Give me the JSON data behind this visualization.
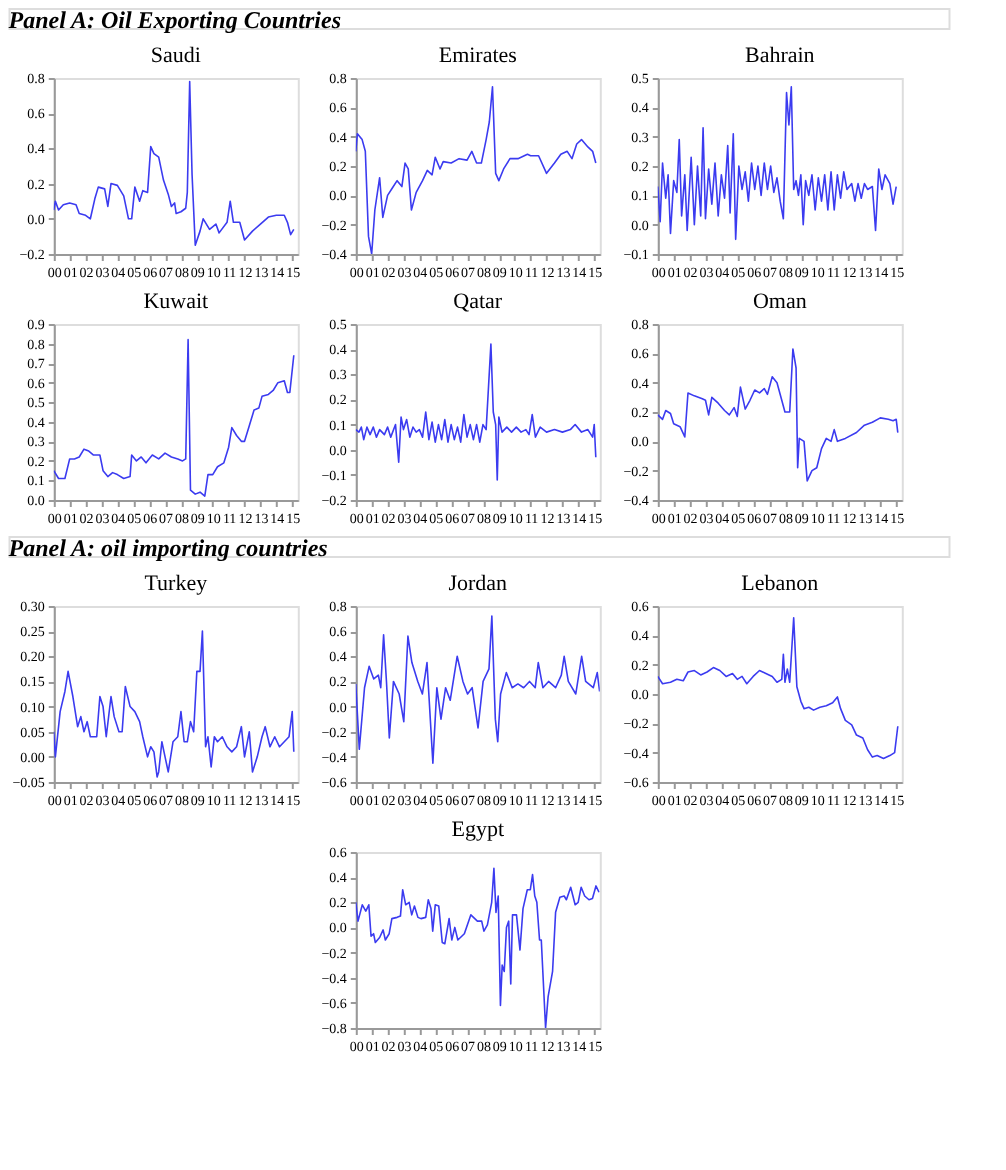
{
  "chart_data": [
    {
      "type": "line",
      "title": "Saudi",
      "annotations": [
        "Panel A: Oil Exporting Countries"
      ],
      "grid": false,
      "xlim": [
        2000,
        2015.35
      ],
      "xticks": [
        {
          "value": 2000,
          "label": "00"
        },
        {
          "value": 2001,
          "label": "01"
        },
        {
          "value": 2002,
          "label": "02"
        },
        {
          "value": 2003,
          "label": "03"
        },
        {
          "value": 2004,
          "label": "04"
        },
        {
          "value": 2005,
          "label": "05"
        },
        {
          "value": 2006,
          "label": "06"
        },
        {
          "value": 2007,
          "label": "07"
        },
        {
          "value": 2008,
          "label": "08"
        },
        {
          "value": 2009,
          "label": "09"
        },
        {
          "value": 2010,
          "label": "10"
        },
        {
          "value": 2011,
          "label": "11"
        },
        {
          "value": 2012,
          "label": "12"
        },
        {
          "value": 2013,
          "label": "13"
        },
        {
          "value": 2014,
          "label": "14"
        },
        {
          "value": 2015,
          "label": "15"
        }
      ],
      "ylim": [
        -0.2,
        0.8
      ],
      "yticks": [
        -0.2,
        {
          "value": 0,
          "label": "0.0"
        },
        0.2,
        0.4,
        0.6,
        0.8
      ],
      "x": [
        2000,
        2000.1,
        2000.3,
        2000.6,
        2001,
        2001.4,
        2001.6,
        2002,
        2002.3,
        2002.6,
        2002.8,
        2003.2,
        2003.4,
        2003.6,
        2004,
        2004.4,
        2004.7,
        2004.9,
        2005.1,
        2005.4,
        2005.6,
        2005.9,
        2006.1,
        2006.3,
        2006.6,
        2006.9,
        2007.2,
        2007.4,
        2007.6,
        2007.7,
        2008,
        2008.3,
        2008.4,
        2008.55,
        2008.7,
        2008.9,
        2009.2,
        2009.4,
        2009.8,
        2010.2,
        2010.4,
        2010.9,
        2011.1,
        2011.3,
        2011.7,
        2012,
        2012.5,
        2013,
        2013.5,
        2014,
        2014.5,
        2014.7,
        2014.9,
        2015.1
      ],
      "series": [
        {
          "color": "#3b3bf0",
          "values": [
            0.05,
            0.1,
            0.05,
            0.08,
            0.09,
            0.08,
            0.03,
            0.02,
            0.0,
            0.12,
            0.18,
            0.17,
            0.07,
            0.2,
            0.19,
            0.13,
            0.0,
            0.0,
            0.18,
            0.1,
            0.16,
            0.15,
            0.41,
            0.37,
            0.35,
            0.22,
            0.14,
            0.07,
            0.09,
            0.03,
            0.04,
            0.06,
            0.15,
            0.78,
            0.25,
            -0.15,
            -0.07,
            0.0,
            -0.06,
            -0.03,
            -0.08,
            -0.02,
            0.1,
            -0.02,
            -0.02,
            -0.12,
            -0.07,
            -0.03,
            0.01,
            0.02,
            0.02,
            -0.02,
            -0.09,
            -0.06
          ]
        }
      ]
    },
    {
      "type": "line",
      "title": "Emirates",
      "grid": false,
      "xlim": [
        2000,
        2015.35
      ],
      "xticks": [
        {
          "value": 2000,
          "label": "00"
        },
        {
          "value": 2001,
          "label": "01"
        },
        {
          "value": 2002,
          "label": "02"
        },
        {
          "value": 2003,
          "label": "03"
        },
        {
          "value": 2004,
          "label": "04"
        },
        {
          "value": 2005,
          "label": "05"
        },
        {
          "value": 2006,
          "label": "06"
        },
        {
          "value": 2007,
          "label": "07"
        },
        {
          "value": 2008,
          "label": "08"
        },
        {
          "value": 2009,
          "label": "09"
        },
        {
          "value": 2010,
          "label": "10"
        },
        {
          "value": 2011,
          "label": "11"
        },
        {
          "value": 2012,
          "label": "12"
        },
        {
          "value": 2013,
          "label": "13"
        },
        {
          "value": 2014,
          "label": "14"
        },
        {
          "value": 2015,
          "label": "15"
        }
      ],
      "ylim": [
        -0.4,
        0.8
      ],
      "yticks": [
        -0.4,
        -0.2,
        {
          "value": 0,
          "label": "0.0"
        },
        0.2,
        0.4,
        0.6,
        0.8
      ],
      "x": [
        2000,
        2000.1,
        2000.4,
        2000.6,
        2000.8,
        2001,
        2001.2,
        2001.5,
        2001.7,
        2002,
        2002.3,
        2002.6,
        2002.9,
        2003.1,
        2003.3,
        2003.5,
        2003.8,
        2004.2,
        2004.5,
        2004.8,
        2005,
        2005.3,
        2005.5,
        2006,
        2006.5,
        2007,
        2007.3,
        2007.6,
        2007.9,
        2008.2,
        2008.4,
        2008.6,
        2008.8,
        2009,
        2009.3,
        2009.7,
        2010.2,
        2010.8,
        2011,
        2011.5,
        2012,
        2012.5,
        2012.9,
        2013.3,
        2013.6,
        2013.9,
        2014.2,
        2014.6,
        2014.9,
        2015.1
      ],
      "series": [
        {
          "color": "#3b3bf0",
          "values": [
            0.3,
            0.42,
            0.38,
            0.3,
            -0.28,
            -0.4,
            -0.1,
            0.12,
            -0.15,
            0.0,
            0.05,
            0.1,
            0.06,
            0.22,
            0.18,
            -0.1,
            0.02,
            0.1,
            0.17,
            0.14,
            0.26,
            0.18,
            0.23,
            0.22,
            0.25,
            0.24,
            0.3,
            0.22,
            0.22,
            0.38,
            0.5,
            0.74,
            0.15,
            0.1,
            0.18,
            0.25,
            0.25,
            0.28,
            0.27,
            0.27,
            0.15,
            0.22,
            0.28,
            0.3,
            0.25,
            0.35,
            0.38,
            0.33,
            0.3,
            0.22
          ]
        }
      ]
    },
    {
      "type": "line",
      "title": "Bahrain",
      "grid": false,
      "xlim": [
        2000,
        2015.35
      ],
      "xticks": [
        {
          "value": 2000,
          "label": "00"
        },
        {
          "value": 2001,
          "label": "01"
        },
        {
          "value": 2002,
          "label": "02"
        },
        {
          "value": 2003,
          "label": "03"
        },
        {
          "value": 2004,
          "label": "04"
        },
        {
          "value": 2005,
          "label": "05"
        },
        {
          "value": 2006,
          "label": "06"
        },
        {
          "value": 2007,
          "label": "07"
        },
        {
          "value": 2008,
          "label": "08"
        },
        {
          "value": 2009,
          "label": "09"
        },
        {
          "value": 2010,
          "label": "10"
        },
        {
          "value": 2011,
          "label": "11"
        },
        {
          "value": 2012,
          "label": "12"
        },
        {
          "value": 2013,
          "label": "13"
        },
        {
          "value": 2014,
          "label": "14"
        },
        {
          "value": 2015,
          "label": "15"
        }
      ],
      "ylim": [
        -0.1,
        0.5
      ],
      "yticks": [
        -0.1,
        {
          "value": 0,
          "label": "0.0"
        },
        0.1,
        0.2,
        0.3,
        0.4,
        0.5
      ],
      "x": [
        2000,
        2000.15,
        2000.3,
        2000.5,
        2000.65,
        2000.8,
        2001,
        2001.2,
        2001.35,
        2001.5,
        2001.7,
        2001.85,
        2002.1,
        2002.3,
        2002.5,
        2002.7,
        2002.85,
        2003,
        2003.2,
        2003.4,
        2003.6,
        2003.8,
        2004,
        2004.2,
        2004.4,
        2004.55,
        2004.75,
        2004.9,
        2005.1,
        2005.3,
        2005.5,
        2005.7,
        2005.9,
        2006.1,
        2006.3,
        2006.5,
        2006.7,
        2006.9,
        2007.1,
        2007.3,
        2007.5,
        2007.7,
        2007.9,
        2008.1,
        2008.25,
        2008.4,
        2008.55,
        2008.7,
        2008.85,
        2009,
        2009.15,
        2009.3,
        2009.5,
        2009.7,
        2009.9,
        2010.1,
        2010.3,
        2010.5,
        2010.7,
        2010.9,
        2011.1,
        2011.3,
        2011.5,
        2011.7,
        2011.9,
        2012.2,
        2012.4,
        2012.6,
        2012.8,
        2013,
        2013.2,
        2013.5,
        2013.7,
        2013.9,
        2014.1,
        2014.3,
        2014.6,
        2014.8,
        2015
      ],
      "series": [
        {
          "color": "#3b3bf0",
          "values": [
            0.13,
            0.01,
            0.21,
            0.09,
            0.17,
            -0.03,
            0.15,
            0.11,
            0.29,
            0.03,
            0.17,
            -0.02,
            0.23,
            0.0,
            0.2,
            0.03,
            0.33,
            0.02,
            0.19,
            0.07,
            0.21,
            0.03,
            0.17,
            0.09,
            0.27,
            0.04,
            0.31,
            -0.05,
            0.2,
            0.12,
            0.18,
            0.08,
            0.21,
            0.12,
            0.2,
            0.1,
            0.21,
            0.12,
            0.2,
            0.11,
            0.16,
            0.08,
            0.02,
            0.45,
            0.34,
            0.47,
            0.12,
            0.15,
            0.1,
            0.17,
            0.0,
            0.15,
            0.1,
            0.17,
            0.05,
            0.16,
            0.08,
            0.17,
            0.05,
            0.18,
            0.05,
            0.17,
            0.09,
            0.18,
            0.12,
            0.14,
            0.08,
            0.14,
            0.09,
            0.14,
            0.12,
            0.13,
            -0.02,
            0.19,
            0.12,
            0.17,
            0.14,
            0.07,
            0.13
          ]
        }
      ]
    },
    {
      "type": "line",
      "title": "Kuwait",
      "grid": false,
      "xlim": [
        2000,
        2015.35
      ],
      "xticks": [
        {
          "value": 2000,
          "label": "00"
        },
        {
          "value": 2001,
          "label": "01"
        },
        {
          "value": 2002,
          "label": "02"
        },
        {
          "value": 2003,
          "label": "03"
        },
        {
          "value": 2004,
          "label": "04"
        },
        {
          "value": 2005,
          "label": "05"
        },
        {
          "value": 2006,
          "label": "06"
        },
        {
          "value": 2007,
          "label": "07"
        },
        {
          "value": 2008,
          "label": "08"
        },
        {
          "value": 2009,
          "label": "09"
        },
        {
          "value": 2010,
          "label": "10"
        },
        {
          "value": 2011,
          "label": "11"
        },
        {
          "value": 2012,
          "label": "12"
        },
        {
          "value": 2013,
          "label": "13"
        },
        {
          "value": 2014,
          "label": "14"
        },
        {
          "value": 2015,
          "label": "15"
        }
      ],
      "ylim": [
        0,
        0.9
      ],
      "yticks": [
        {
          "value": 0,
          "label": "0.0"
        },
        0.1,
        0.2,
        0.3,
        0.4,
        0.5,
        0.6,
        0.7,
        0.8,
        0.9
      ],
      "x": [
        2000,
        2000.3,
        2000.7,
        2001,
        2001.3,
        2001.6,
        2001.9,
        2002.2,
        2002.5,
        2002.9,
        2003.1,
        2003.4,
        2003.7,
        2004,
        2004.4,
        2004.8,
        2004.9,
        2005.2,
        2005.5,
        2005.8,
        2006.2,
        2006.6,
        2007,
        2007.4,
        2007.8,
        2008.1,
        2008.3,
        2008.45,
        2008.6,
        2008.9,
        2009.2,
        2009.5,
        2009.7,
        2010,
        2010.3,
        2010.7,
        2011,
        2011.2,
        2011.5,
        2011.8,
        2012,
        2012.3,
        2012.6,
        2012.9,
        2013.1,
        2013.5,
        2013.8,
        2014.1,
        2014.5,
        2014.7,
        2014.85,
        2015.1
      ],
      "series": [
        {
          "color": "#3b3bf0",
          "values": [
            0.15,
            0.11,
            0.11,
            0.21,
            0.21,
            0.22,
            0.26,
            0.25,
            0.23,
            0.23,
            0.15,
            0.12,
            0.14,
            0.13,
            0.11,
            0.12,
            0.23,
            0.2,
            0.22,
            0.19,
            0.23,
            0.21,
            0.24,
            0.22,
            0.21,
            0.2,
            0.21,
            0.82,
            0.05,
            0.03,
            0.04,
            0.02,
            0.13,
            0.13,
            0.17,
            0.19,
            0.27,
            0.37,
            0.33,
            0.3,
            0.3,
            0.38,
            0.46,
            0.47,
            0.53,
            0.54,
            0.56,
            0.6,
            0.61,
            0.55,
            0.55,
            0.74
          ]
        }
      ]
    },
    {
      "type": "line",
      "title": "Qatar",
      "grid": false,
      "xlim": [
        2000,
        2015.35
      ],
      "xticks": [
        {
          "value": 2000,
          "label": "00"
        },
        {
          "value": 2001,
          "label": "01"
        },
        {
          "value": 2002,
          "label": "02"
        },
        {
          "value": 2003,
          "label": "03"
        },
        {
          "value": 2004,
          "label": "04"
        },
        {
          "value": 2005,
          "label": "05"
        },
        {
          "value": 2006,
          "label": "06"
        },
        {
          "value": 2007,
          "label": "07"
        },
        {
          "value": 2008,
          "label": "08"
        },
        {
          "value": 2009,
          "label": "09"
        },
        {
          "value": 2010,
          "label": "10"
        },
        {
          "value": 2011,
          "label": "11"
        },
        {
          "value": 2012,
          "label": "12"
        },
        {
          "value": 2013,
          "label": "13"
        },
        {
          "value": 2014,
          "label": "14"
        },
        {
          "value": 2015,
          "label": "15"
        }
      ],
      "ylim": [
        -0.2,
        0.5
      ],
      "yticks": [
        -0.2,
        -0.1,
        {
          "value": 0,
          "label": "0.0"
        },
        0.1,
        0.2,
        0.3,
        0.4,
        0.5
      ],
      "x": [
        2000,
        2000.2,
        2000.35,
        2000.5,
        2000.7,
        2000.9,
        2001.1,
        2001.3,
        2001.5,
        2001.8,
        2002,
        2002.2,
        2002.5,
        2002.7,
        2002.85,
        2003,
        2003.2,
        2003.4,
        2003.6,
        2003.8,
        2004,
        2004.2,
        2004.4,
        2004.6,
        2004.8,
        2005,
        2005.2,
        2005.4,
        2005.6,
        2005.8,
        2006,
        2006.2,
        2006.4,
        2006.6,
        2006.8,
        2007,
        2007.2,
        2007.4,
        2007.6,
        2007.8,
        2008,
        2008.2,
        2008.35,
        2008.5,
        2008.65,
        2008.8,
        2008.9,
        2009,
        2009.2,
        2009.5,
        2009.8,
        2010.1,
        2010.4,
        2010.7,
        2010.9,
        2011.1,
        2011.3,
        2011.6,
        2012,
        2012.5,
        2013,
        2013.5,
        2013.8,
        2014.2,
        2014.6,
        2014.9,
        2015,
        2015.1
      ],
      "series": [
        {
          "color": "#3b3bf0",
          "values": [
            0.08,
            0.07,
            0.09,
            0.04,
            0.09,
            0.06,
            0.09,
            0.05,
            0.08,
            0.06,
            0.09,
            0.05,
            0.1,
            -0.05,
            0.13,
            0.08,
            0.12,
            0.05,
            0.09,
            0.07,
            0.08,
            0.05,
            0.15,
            0.04,
            0.11,
            0.03,
            0.1,
            0.04,
            0.12,
            0.03,
            0.1,
            0.04,
            0.09,
            0.03,
            0.14,
            0.05,
            0.1,
            0.04,
            0.1,
            0.03,
            0.1,
            0.08,
            0.25,
            0.42,
            0.15,
            0.1,
            -0.12,
            0.13,
            0.07,
            0.09,
            0.07,
            0.09,
            0.07,
            0.08,
            0.06,
            0.14,
            0.05,
            0.09,
            0.07,
            0.08,
            0.07,
            0.08,
            0.1,
            0.07,
            0.08,
            0.05,
            0.1,
            -0.03
          ]
        }
      ]
    },
    {
      "type": "line",
      "title": "Oman",
      "grid": false,
      "xlim": [
        2000,
        2015.35
      ],
      "xticks": [
        {
          "value": 2000,
          "label": "00"
        },
        {
          "value": 2001,
          "label": "01"
        },
        {
          "value": 2002,
          "label": "02"
        },
        {
          "value": 2003,
          "label": "03"
        },
        {
          "value": 2004,
          "label": "04"
        },
        {
          "value": 2005,
          "label": "05"
        },
        {
          "value": 2006,
          "label": "06"
        },
        {
          "value": 2007,
          "label": "07"
        },
        {
          "value": 2008,
          "label": "08"
        },
        {
          "value": 2009,
          "label": "09"
        },
        {
          "value": 2010,
          "label": "10"
        },
        {
          "value": 2011,
          "label": "11"
        },
        {
          "value": 2012,
          "label": "12"
        },
        {
          "value": 2013,
          "label": "13"
        },
        {
          "value": 2014,
          "label": "14"
        },
        {
          "value": 2015,
          "label": "15"
        }
      ],
      "ylim": [
        -0.4,
        0.8
      ],
      "yticks": [
        -0.4,
        -0.2,
        {
          "value": 0,
          "label": "0.0"
        },
        0.2,
        0.4,
        0.6,
        0.8
      ],
      "x": [
        2000,
        2000.3,
        2000.5,
        2000.8,
        2001,
        2001.4,
        2001.7,
        2001.9,
        2002.3,
        2002.8,
        2003,
        2003.2,
        2003.4,
        2003.8,
        2004.2,
        2004.5,
        2004.8,
        2005,
        2005.2,
        2005.5,
        2005.8,
        2006.1,
        2006.4,
        2006.7,
        2006.9,
        2007.2,
        2007.5,
        2007.8,
        2008,
        2008.3,
        2008.5,
        2008.7,
        2008.8,
        2008.9,
        2009.2,
        2009.4,
        2009.7,
        2010,
        2010.3,
        2010.6,
        2010.9,
        2011.1,
        2011.3,
        2011.8,
        2012.5,
        2013,
        2013.5,
        2014,
        2014.5,
        2014.8,
        2015,
        2015.1
      ],
      "series": [
        {
          "color": "#3b3bf0",
          "values": [
            0.18,
            0.15,
            0.21,
            0.19,
            0.12,
            0.1,
            0.03,
            0.33,
            0.31,
            0.29,
            0.28,
            0.18,
            0.3,
            0.26,
            0.21,
            0.18,
            0.23,
            0.17,
            0.37,
            0.22,
            0.28,
            0.35,
            0.33,
            0.36,
            0.32,
            0.44,
            0.4,
            0.28,
            0.2,
            0.2,
            0.63,
            0.5,
            -0.18,
            0.02,
            0.0,
            -0.27,
            -0.2,
            -0.18,
            -0.05,
            0.02,
            0.0,
            0.08,
            0.0,
            0.02,
            0.06,
            0.11,
            0.13,
            0.16,
            0.15,
            0.14,
            0.15,
            0.06
          ]
        }
      ]
    },
    {
      "type": "line",
      "title": "Turkey",
      "annotations": [
        "Panel A: oil importing countries"
      ],
      "grid": false,
      "xlim": [
        2000,
        2015.35
      ],
      "xticks": [
        {
          "value": 2000,
          "label": "00"
        },
        {
          "value": 2001,
          "label": "01"
        },
        {
          "value": 2002,
          "label": "02"
        },
        {
          "value": 2003,
          "label": "03"
        },
        {
          "value": 2004,
          "label": "04"
        },
        {
          "value": 2005,
          "label": "05"
        },
        {
          "value": 2006,
          "label": "06"
        },
        {
          "value": 2007,
          "label": "07"
        },
        {
          "value": 2008,
          "label": "08"
        },
        {
          "value": 2009,
          "label": "09"
        },
        {
          "value": 2010,
          "label": "10"
        },
        {
          "value": 2011,
          "label": "11"
        },
        {
          "value": 2012,
          "label": "12"
        },
        {
          "value": 2013,
          "label": "13"
        },
        {
          "value": 2014,
          "label": "14"
        },
        {
          "value": 2015,
          "label": "15"
        }
      ],
      "ylim": [
        -0.05,
        0.3
      ],
      "yticks": [
        -0.05,
        {
          "value": 0,
          "label": "0.00"
        },
        0.05,
        {
          "value": 0.1,
          "label": "0.10"
        },
        0.15,
        {
          "value": 0.2,
          "label": "0.20"
        },
        0.25,
        {
          "value": 0.3,
          "label": "0.30"
        }
      ],
      "x": [
        2000,
        2000.1,
        2000.4,
        2000.7,
        2000.9,
        2001.2,
        2001.5,
        2001.7,
        2001.9,
        2002.1,
        2002.3,
        2002.7,
        2002.9,
        2003.1,
        2003.3,
        2003.6,
        2003.8,
        2004.1,
        2004.3,
        2004.5,
        2004.8,
        2005.1,
        2005.4,
        2005.6,
        2005.9,
        2006.1,
        2006.3,
        2006.5,
        2006.6,
        2006.8,
        2007,
        2007.2,
        2007.5,
        2007.8,
        2008,
        2008.2,
        2008.4,
        2008.6,
        2008.8,
        2009,
        2009.2,
        2009.35,
        2009.55,
        2009.7,
        2009.9,
        2010.1,
        2010.3,
        2010.6,
        2010.9,
        2011.2,
        2011.5,
        2011.8,
        2012,
        2012.3,
        2012.5,
        2012.8,
        2013.1,
        2013.3,
        2013.6,
        2013.9,
        2014.2,
        2014.5,
        2014.8,
        2015,
        2015.1
      ],
      "series": [
        {
          "color": "#3b3bf0",
          "values": [
            0.05,
            0.0,
            0.09,
            0.13,
            0.17,
            0.12,
            0.06,
            0.08,
            0.05,
            0.07,
            0.04,
            0.04,
            0.12,
            0.1,
            0.04,
            0.12,
            0.08,
            0.05,
            0.05,
            0.14,
            0.1,
            0.09,
            0.07,
            0.04,
            0.0,
            0.02,
            0.01,
            -0.04,
            -0.03,
            0.03,
            0.0,
            -0.03,
            0.03,
            0.04,
            0.09,
            0.03,
            0.03,
            0.07,
            0.05,
            0.17,
            0.17,
            0.25,
            0.02,
            0.04,
            -0.02,
            0.04,
            0.03,
            0.04,
            0.02,
            0.01,
            0.02,
            0.06,
            0.0,
            0.05,
            -0.03,
            0.0,
            0.04,
            0.06,
            0.02,
            0.04,
            0.02,
            0.03,
            0.04,
            0.09,
            0.01
          ]
        }
      ]
    },
    {
      "type": "line",
      "title": "Jordan",
      "grid": false,
      "xlim": [
        2000,
        2015.35
      ],
      "xticks": [
        {
          "value": 2000,
          "label": "00"
        },
        {
          "value": 2001,
          "label": "01"
        },
        {
          "value": 2002,
          "label": "02"
        },
        {
          "value": 2003,
          "label": "03"
        },
        {
          "value": 2004,
          "label": "04"
        },
        {
          "value": 2005,
          "label": "05"
        },
        {
          "value": 2006,
          "label": "06"
        },
        {
          "value": 2007,
          "label": "07"
        },
        {
          "value": 2008,
          "label": "08"
        },
        {
          "value": 2009,
          "label": "09"
        },
        {
          "value": 2010,
          "label": "10"
        },
        {
          "value": 2011,
          "label": "11"
        },
        {
          "value": 2012,
          "label": "12"
        },
        {
          "value": 2013,
          "label": "13"
        },
        {
          "value": 2014,
          "label": "14"
        },
        {
          "value": 2015,
          "label": "15"
        }
      ],
      "ylim": [
        -0.6,
        0.8
      ],
      "yticks": [
        -0.6,
        -0.4,
        -0.2,
        {
          "value": 0,
          "label": "0.0"
        },
        0.2,
        0.4,
        0.6,
        0.8
      ],
      "x": [
        2000,
        2000.22,
        2000.55,
        2000.84,
        2001.13,
        2001.42,
        2001.57,
        2001.75,
        2001.93,
        2002.11,
        2002.37,
        2002.73,
        2003.02,
        2003.28,
        2003.53,
        2003.9,
        2004.19,
        2004.48,
        2004.85,
        2005.1,
        2005.36,
        2005.65,
        2005.94,
        2006.38,
        2006.74,
        2007.03,
        2007.32,
        2007.69,
        2008.01,
        2008.38,
        2008.56,
        2008.78,
        2008.93,
        2009.11,
        2009.47,
        2009.84,
        2010.2,
        2010.56,
        2010.93,
        2011.29,
        2011.48,
        2011.77,
        2012.13,
        2012.57,
        2012.93,
        2013.11,
        2013.37,
        2013.84,
        2014.21,
        2014.46,
        2014.94,
        2015.19,
        2015.34
      ],
      "series": [
        {
          "color": "#3b3bf0",
          "values": [
            0.18,
            -0.34,
            0.15,
            0.32,
            0.22,
            0.25,
            0.15,
            0.57,
            0.2,
            -0.25,
            0.2,
            0.1,
            -0.12,
            0.56,
            0.35,
            0.2,
            0.1,
            0.35,
            -0.45,
            0.15,
            -0.1,
            0.15,
            0.05,
            0.4,
            0.2,
            0.1,
            0.15,
            -0.17,
            0.2,
            0.3,
            0.72,
            -0.1,
            -0.28,
            0.1,
            0.27,
            0.15,
            0.18,
            0.15,
            0.2,
            0.15,
            0.35,
            0.15,
            0.2,
            0.15,
            0.25,
            0.4,
            0.2,
            0.1,
            0.4,
            0.2,
            0.15,
            0.27,
            0.12
          ]
        }
      ]
    },
    {
      "type": "line",
      "title": "Lebanon",
      "grid": false,
      "xlim": [
        2000,
        2015.35
      ],
      "xticks": [
        {
          "value": 2000,
          "label": "00"
        },
        {
          "value": 2001,
          "label": "01"
        },
        {
          "value": 2002,
          "label": "02"
        },
        {
          "value": 2003,
          "label": "03"
        },
        {
          "value": 2004,
          "label": "04"
        },
        {
          "value": 2005,
          "label": "05"
        },
        {
          "value": 2006,
          "label": "06"
        },
        {
          "value": 2007,
          "label": "07"
        },
        {
          "value": 2008,
          "label": "08"
        },
        {
          "value": 2009,
          "label": "09"
        },
        {
          "value": 2010,
          "label": "10"
        },
        {
          "value": 2011,
          "label": "11"
        },
        {
          "value": 2012,
          "label": "12"
        },
        {
          "value": 2013,
          "label": "13"
        },
        {
          "value": 2014,
          "label": "14"
        },
        {
          "value": 2015,
          "label": "15"
        }
      ],
      "ylim": [
        -0.6,
        0.6
      ],
      "yticks": [
        -0.6,
        -0.4,
        -0.2,
        {
          "value": 0,
          "label": "0.0"
        },
        0.2,
        0.4,
        0.6
      ],
      "x": [
        2000,
        2000.3,
        2000.8,
        2001.2,
        2001.6,
        2001.9,
        2002.3,
        2002.7,
        2003.1,
        2003.5,
        2003.9,
        2004.3,
        2004.7,
        2005,
        2005.3,
        2005.6,
        2006,
        2006.4,
        2006.8,
        2007.2,
        2007.5,
        2007.8,
        2007.9,
        2008,
        2008.15,
        2008.3,
        2008.55,
        2008.75,
        2009,
        2009.2,
        2009.5,
        2009.8,
        2010.2,
        2010.6,
        2011,
        2011.3,
        2011.5,
        2011.8,
        2012.2,
        2012.5,
        2012.9,
        2013.2,
        2013.5,
        2013.8,
        2014.2,
        2014.6,
        2014.9,
        2015.1
      ],
      "series": [
        {
          "color": "#3b3bf0",
          "values": [
            0.12,
            0.07,
            0.08,
            0.1,
            0.09,
            0.15,
            0.16,
            0.13,
            0.15,
            0.18,
            0.16,
            0.12,
            0.14,
            0.1,
            0.12,
            0.07,
            0.12,
            0.16,
            0.14,
            0.12,
            0.08,
            0.1,
            0.27,
            0.08,
            0.17,
            0.08,
            0.52,
            0.05,
            -0.05,
            -0.1,
            -0.09,
            -0.11,
            -0.09,
            -0.08,
            -0.06,
            -0.02,
            -0.1,
            -0.18,
            -0.21,
            -0.28,
            -0.3,
            -0.38,
            -0.43,
            -0.42,
            -0.44,
            -0.42,
            -0.4,
            -0.22
          ]
        }
      ]
    },
    {
      "type": "line",
      "title": "Egypt",
      "grid": false,
      "xlim": [
        2000,
        2015.35
      ],
      "xticks": [
        {
          "value": 2000,
          "label": "00"
        },
        {
          "value": 2001,
          "label": "01"
        },
        {
          "value": 2002,
          "label": "02"
        },
        {
          "value": 2003,
          "label": "03"
        },
        {
          "value": 2004,
          "label": "04"
        },
        {
          "value": 2005,
          "label": "05"
        },
        {
          "value": 2006,
          "label": "06"
        },
        {
          "value": 2007,
          "label": "07"
        },
        {
          "value": 2008,
          "label": "08"
        },
        {
          "value": 2009,
          "label": "09"
        },
        {
          "value": 2010,
          "label": "10"
        },
        {
          "value": 2011,
          "label": "11"
        },
        {
          "value": 2012,
          "label": "12"
        },
        {
          "value": 2013,
          "label": "13"
        },
        {
          "value": 2014,
          "label": "14"
        },
        {
          "value": 2015,
          "label": "15"
        }
      ],
      "ylim": [
        -0.8,
        0.6
      ],
      "yticks": [
        -0.8,
        -0.6,
        -0.4,
        -0.2,
        {
          "value": 0,
          "label": "0.0"
        },
        0.2,
        0.4,
        0.6
      ],
      "x": [
        2000,
        2000.14,
        2000.41,
        2000.63,
        2000.82,
        2000.96,
        2001.12,
        2001.23,
        2001.5,
        2001.72,
        2001.86,
        2002.1,
        2002.27,
        2002.6,
        2002.81,
        2002.95,
        2003.14,
        2003.36,
        2003.52,
        2003.69,
        2003.91,
        2004.1,
        2004.4,
        2004.56,
        2004.73,
        2004.84,
        2005,
        2005.22,
        2005.44,
        2005.6,
        2005.87,
        2006.04,
        2006.23,
        2006.42,
        2006.83,
        2007.24,
        2007.65,
        2007.92,
        2008.06,
        2008.28,
        2008.55,
        2008.69,
        2008.82,
        2008.96,
        2009.1,
        2009.21,
        2009.34,
        2009.48,
        2009.62,
        2009.75,
        2009.86,
        2010.11,
        2010.33,
        2010.52,
        2010.79,
        2010.98,
        2011.12,
        2011.26,
        2011.39,
        2011.56,
        2011.67,
        2011.94,
        2012.1,
        2012.38,
        2012.57,
        2012.84,
        2013.11,
        2013.25,
        2013.52,
        2013.66,
        2013.8,
        2013.99,
        2014.18,
        2014.4,
        2014.67,
        2014.89,
        2015.11,
        2015.3
      ],
      "series": [
        {
          "color": "#3b3bf0",
          "values": [
            0.2,
            0.05,
            0.18,
            0.13,
            0.18,
            -0.07,
            -0.05,
            -0.12,
            -0.08,
            -0.02,
            -0.1,
            -0.05,
            0.07,
            0.08,
            0.09,
            0.3,
            0.18,
            0.2,
            0.1,
            0.17,
            0.08,
            0.07,
            0.08,
            0.22,
            0.15,
            -0.03,
            0.18,
            0.17,
            -0.12,
            -0.13,
            0.07,
            -0.1,
            0.0,
            -0.1,
            -0.05,
            0.1,
            0.05,
            0.05,
            -0.03,
            0.02,
            0.2,
            0.47,
            0.12,
            0.25,
            -0.62,
            -0.3,
            -0.35,
            0.0,
            0.05,
            -0.45,
            0.1,
            0.1,
            -0.18,
            0.15,
            0.3,
            0.3,
            0.42,
            0.25,
            0.2,
            -0.1,
            -0.1,
            -0.8,
            -0.55,
            -0.35,
            0.12,
            0.24,
            0.25,
            0.22,
            0.32,
            0.25,
            0.18,
            0.2,
            0.32,
            0.25,
            0.22,
            0.23,
            0.33,
            0.28
          ]
        }
      ]
    }
  ]
}
